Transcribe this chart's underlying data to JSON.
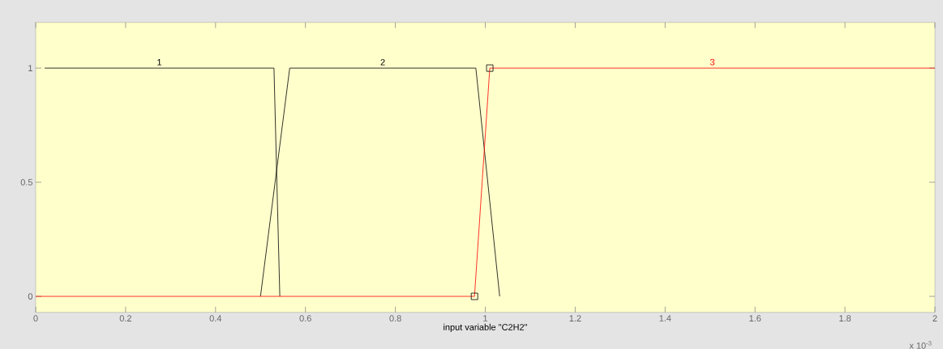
{
  "chart_data": {
    "type": "line",
    "xlabel": "input variable \"C2H2\"",
    "annotations": [
      "x 10$^{-3}$"
    ],
    "xlim": [
      0,
      2
    ],
    "ylim": [
      -0.07,
      1.2
    ],
    "xticks": [
      0,
      0.2,
      0.4,
      0.6,
      0.8,
      1,
      1.2,
      1.4,
      1.6,
      1.8,
      2
    ],
    "yticks": [
      0,
      0.5,
      1
    ],
    "grid": false,
    "series": [
      {
        "name": "1",
        "color": "#000000",
        "x": [
          0.02,
          0.53,
          0.543
        ],
        "values": [
          1,
          1,
          0
        ]
      },
      {
        "name": "2",
        "color": "#000000",
        "x": [
          0.5,
          0.565,
          0.979,
          1.032
        ],
        "values": [
          0,
          1,
          1,
          0
        ]
      },
      {
        "name": "3",
        "color": "#ff0000",
        "x": [
          0,
          0.976,
          1.01,
          2
        ],
        "values": [
          0,
          0,
          1,
          1
        ]
      },
      {
        "type": "scatter",
        "marker": "square",
        "color": "#000000",
        "x": [
          0.976,
          1.01
        ],
        "values": [
          0,
          1
        ]
      }
    ]
  }
}
